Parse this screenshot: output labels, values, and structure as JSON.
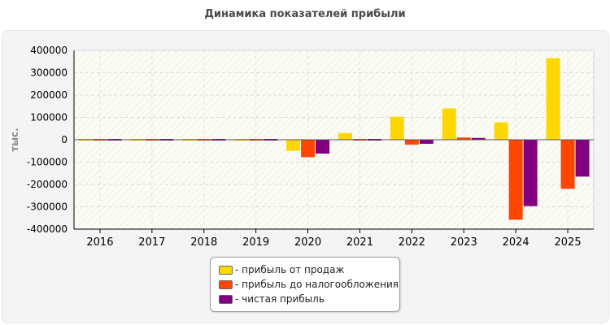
{
  "chart_data": {
    "type": "bar",
    "title": "Динамика показателей прибыли",
    "ylabel": "тыс.",
    "xlabel": "",
    "categories": [
      "2016",
      "2017",
      "2018",
      "2019",
      "2020",
      "2021",
      "2022",
      "2023",
      "2024",
      "2025"
    ],
    "series": [
      {
        "name": "- прибыль от продаж",
        "color": "#FFD700",
        "values": [
          5000,
          5000,
          5000,
          -3000,
          -50000,
          30000,
          103000,
          140000,
          78000,
          365000
        ]
      },
      {
        "name": "- прибыль до налогообложения",
        "color": "#FF4500",
        "values": [
          4000,
          5000,
          5000,
          -4000,
          -78000,
          -5000,
          -22000,
          10000,
          -358000,
          -220000
        ]
      },
      {
        "name": "- чистая прибыль",
        "color": "#800080",
        "values": [
          4000,
          4000,
          4000,
          -3000,
          -62000,
          -4000,
          -18000,
          8000,
          -297000,
          -165000
        ]
      }
    ],
    "ylim": [
      -400000,
      400000
    ],
    "yticks": [
      -400000,
      -300000,
      -200000,
      -100000,
      0,
      100000,
      200000,
      300000,
      400000
    ],
    "grid": true,
    "legend_position": "bottom-center"
  }
}
